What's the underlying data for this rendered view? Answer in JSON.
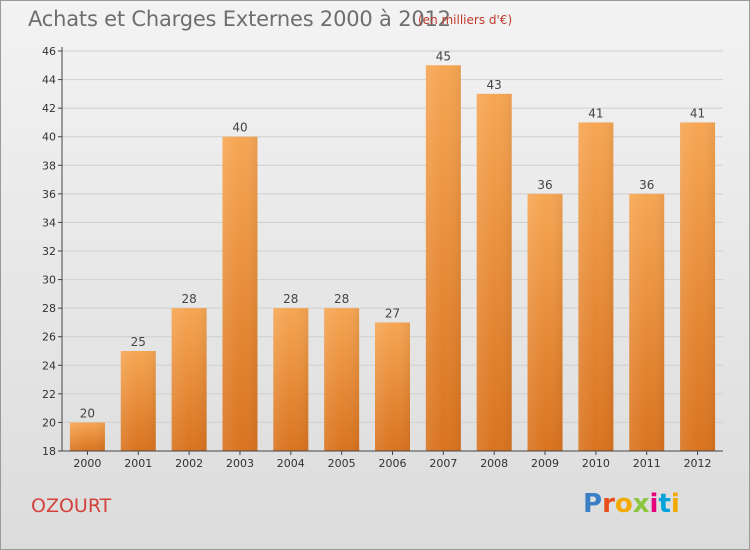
{
  "header": {
    "title": "Achats et Charges Externes 2000 à 2012",
    "subtitle": "(en milliers d'€)"
  },
  "footer": {
    "commune": "OZOURT",
    "logo_text": "Proxiti",
    "logo_colors": [
      "#3b7fc4",
      "#e84e1b",
      "#f2a900",
      "#8cc63f",
      "#e5007e",
      "#00a3da",
      "#f2a900"
    ]
  },
  "colors": {
    "bar_top": "#f6a653",
    "bar_bottom": "#d9731f",
    "axis": "#444444",
    "grid": "#cfcfcf"
  },
  "chart_data": {
    "type": "bar",
    "categories": [
      "2000",
      "2001",
      "2002",
      "2003",
      "2004",
      "2005",
      "2006",
      "2007",
      "2008",
      "2009",
      "2010",
      "2011",
      "2012"
    ],
    "values": [
      20,
      25,
      28,
      40,
      28,
      28,
      27,
      45,
      43,
      36,
      41,
      36,
      41
    ],
    "ylim": [
      18,
      46
    ],
    "yticks": [
      18,
      20,
      22,
      24,
      26,
      28,
      30,
      32,
      34,
      36,
      38,
      40,
      42,
      44,
      46
    ],
    "grid": true,
    "data_labels": true
  }
}
